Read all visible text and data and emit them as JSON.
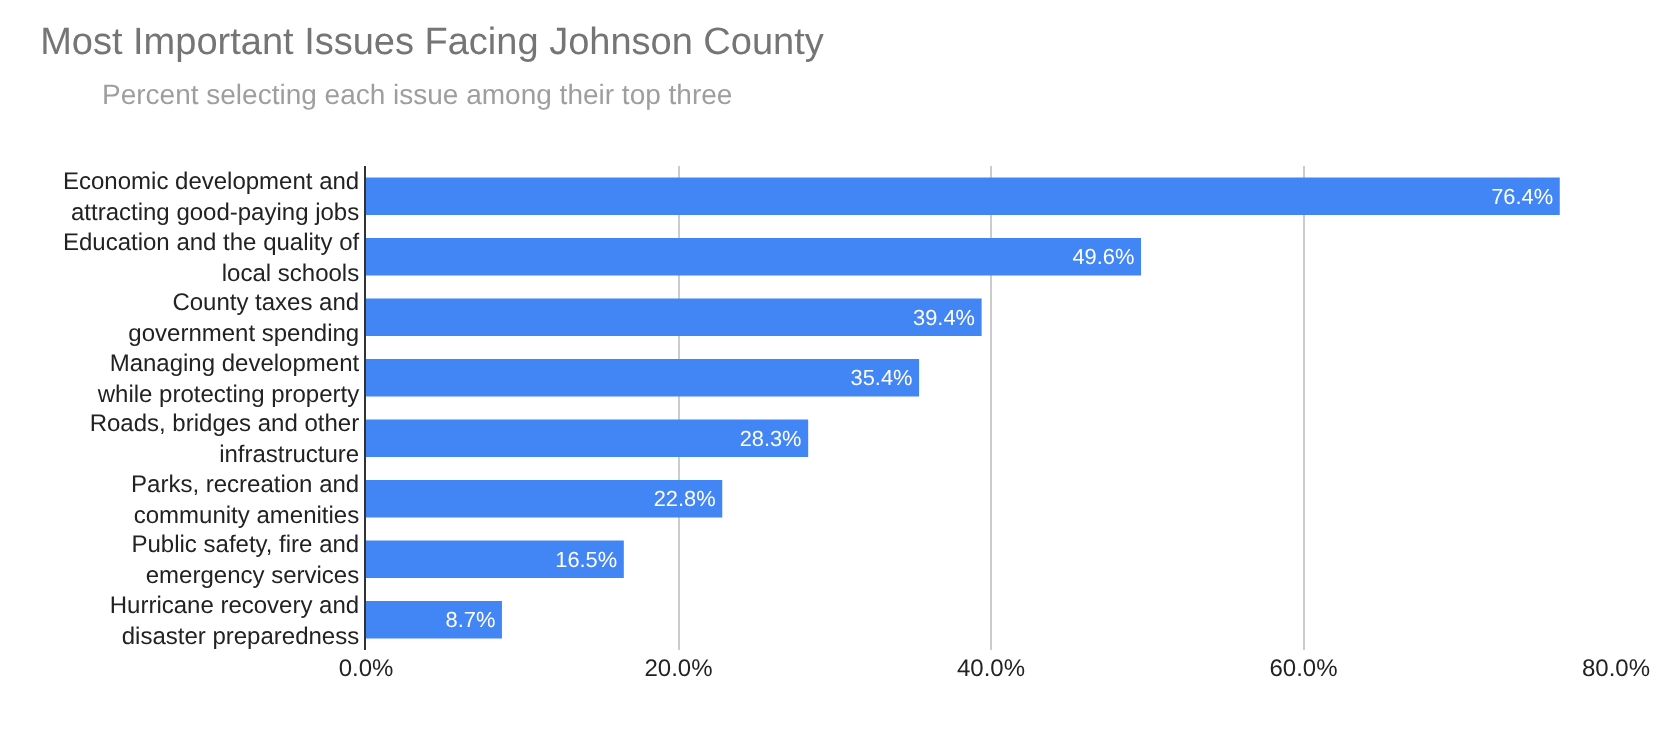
{
  "chart_data": {
    "type": "bar",
    "orientation": "horizontal",
    "title": "Most Important Issues Facing Johnson County",
    "subtitle": "Percent selecting each issue among their top three",
    "categories": [
      "Economic development and\nattracting good-paying jobs",
      "Education and the quality of\nlocal schools",
      "County taxes and\ngovernment spending",
      "Managing development\nwhile protecting property",
      "Roads, bridges and other\ninfrastructure",
      "Parks, recreation and\ncommunity amenities",
      "Public safety, fire and\nemergency services",
      "Hurricane recovery and\ndisaster preparedness"
    ],
    "values": [
      76.4,
      49.6,
      39.4,
      35.4,
      28.3,
      22.8,
      16.5,
      8.7
    ],
    "value_labels": [
      "76.4%",
      "49.6%",
      "39.4%",
      "35.4%",
      "28.3%",
      "22.8%",
      "16.5%",
      "8.7%"
    ],
    "color": "#4285f4",
    "xlim": [
      0,
      80
    ],
    "xticks": [
      {
        "value": 0,
        "label": "0.0%"
      },
      {
        "value": 20,
        "label": "20.0%"
      },
      {
        "value": 40,
        "label": "40.0%"
      },
      {
        "value": 60,
        "label": "60.0%"
      },
      {
        "value": 80,
        "label": "80.0%"
      }
    ],
    "grid": "x",
    "legend": false
  }
}
